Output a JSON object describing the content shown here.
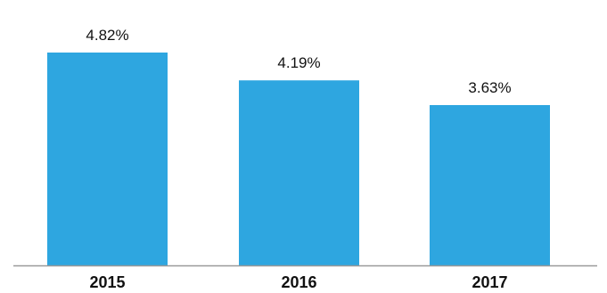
{
  "chart_data": {
    "type": "bar",
    "categories": [
      "2015",
      "2016",
      "2017"
    ],
    "values": [
      4.82,
      4.19,
      3.63
    ],
    "value_labels": [
      "4.82%",
      "4.19%",
      "3.63%"
    ],
    "title": "",
    "xlabel": "",
    "ylabel": "",
    "ylim": [
      0,
      4.82
    ],
    "grid": false,
    "legend": "none",
    "bar_color": "#2ea6e0",
    "axis_color": "#999999",
    "text_color": "#111111"
  }
}
